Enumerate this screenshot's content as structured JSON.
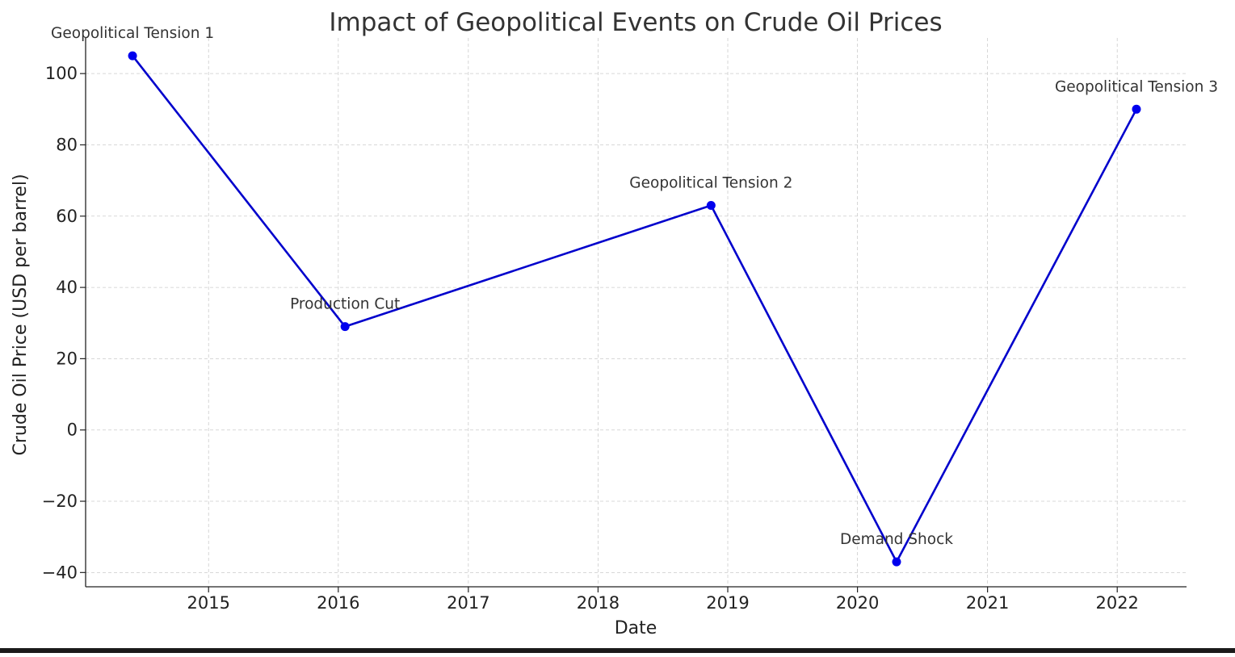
{
  "chart_data": {
    "type": "line",
    "title": "Impact of Geopolitical Events on Crude Oil Prices",
    "xlabel": "Date",
    "ylabel": "Crude Oil Price (USD per barrel)",
    "x_axis_type": "date",
    "xlim": [
      "2014-01-20",
      "2022-07-15"
    ],
    "ylim": [
      -44,
      110
    ],
    "x_ticks": [
      "2015",
      "2016",
      "2017",
      "2018",
      "2019",
      "2020",
      "2021",
      "2022"
    ],
    "y_ticks": [
      100,
      80,
      60,
      40,
      20,
      0,
      -20,
      -40
    ],
    "y_tick_labels": [
      "100",
      "80",
      "60",
      "40",
      "20",
      "0",
      "−20",
      "−40"
    ],
    "grid": true,
    "grid_style": "dashed",
    "series": [
      {
        "color": "#0000cc",
        "marker_color": "#0000ee",
        "points": [
          {
            "x": "2014-06-01",
            "y": 105,
            "label": "Geopolitical Tension 1"
          },
          {
            "x": "2016-01-20",
            "y": 29,
            "label": "Production Cut"
          },
          {
            "x": "2018-11-15",
            "y": 63,
            "label": "Geopolitical Tension 2"
          },
          {
            "x": "2020-04-20",
            "y": -37,
            "label": "Demand Shock"
          },
          {
            "x": "2022-02-24",
            "y": 90,
            "label": "Geopolitical Tension 3"
          }
        ]
      }
    ]
  }
}
